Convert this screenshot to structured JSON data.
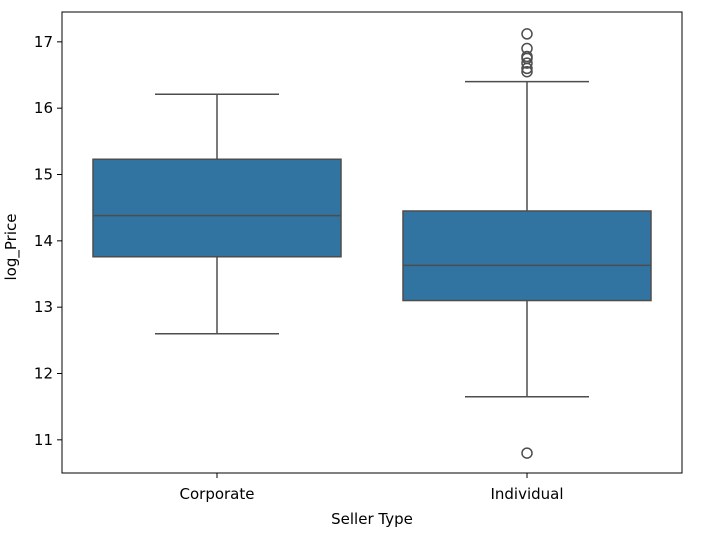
{
  "chart_data": {
    "type": "boxplot",
    "xlabel": "Seller Type",
    "ylabel": "log_Price",
    "ylim": [
      10.5,
      17.45
    ],
    "yticks": [
      11,
      12,
      13,
      14,
      15,
      16,
      17
    ],
    "categories": [
      "Corporate",
      "Individual"
    ],
    "boxes": [
      {
        "category": "Corporate",
        "whisker_low": 12.6,
        "q1": 13.76,
        "median": 14.38,
        "q3": 15.23,
        "whisker_high": 16.21,
        "outliers": []
      },
      {
        "category": "Individual",
        "whisker_low": 11.65,
        "q1": 13.1,
        "median": 13.63,
        "q3": 14.45,
        "whisker_high": 16.4,
        "outliers": [
          10.8,
          16.55,
          16.6,
          16.68,
          16.75,
          16.78,
          16.9,
          17.12
        ]
      }
    ],
    "colors": {
      "box_fill": "#3274a1",
      "line": "#4d4d4d",
      "frame": "#000000"
    }
  }
}
